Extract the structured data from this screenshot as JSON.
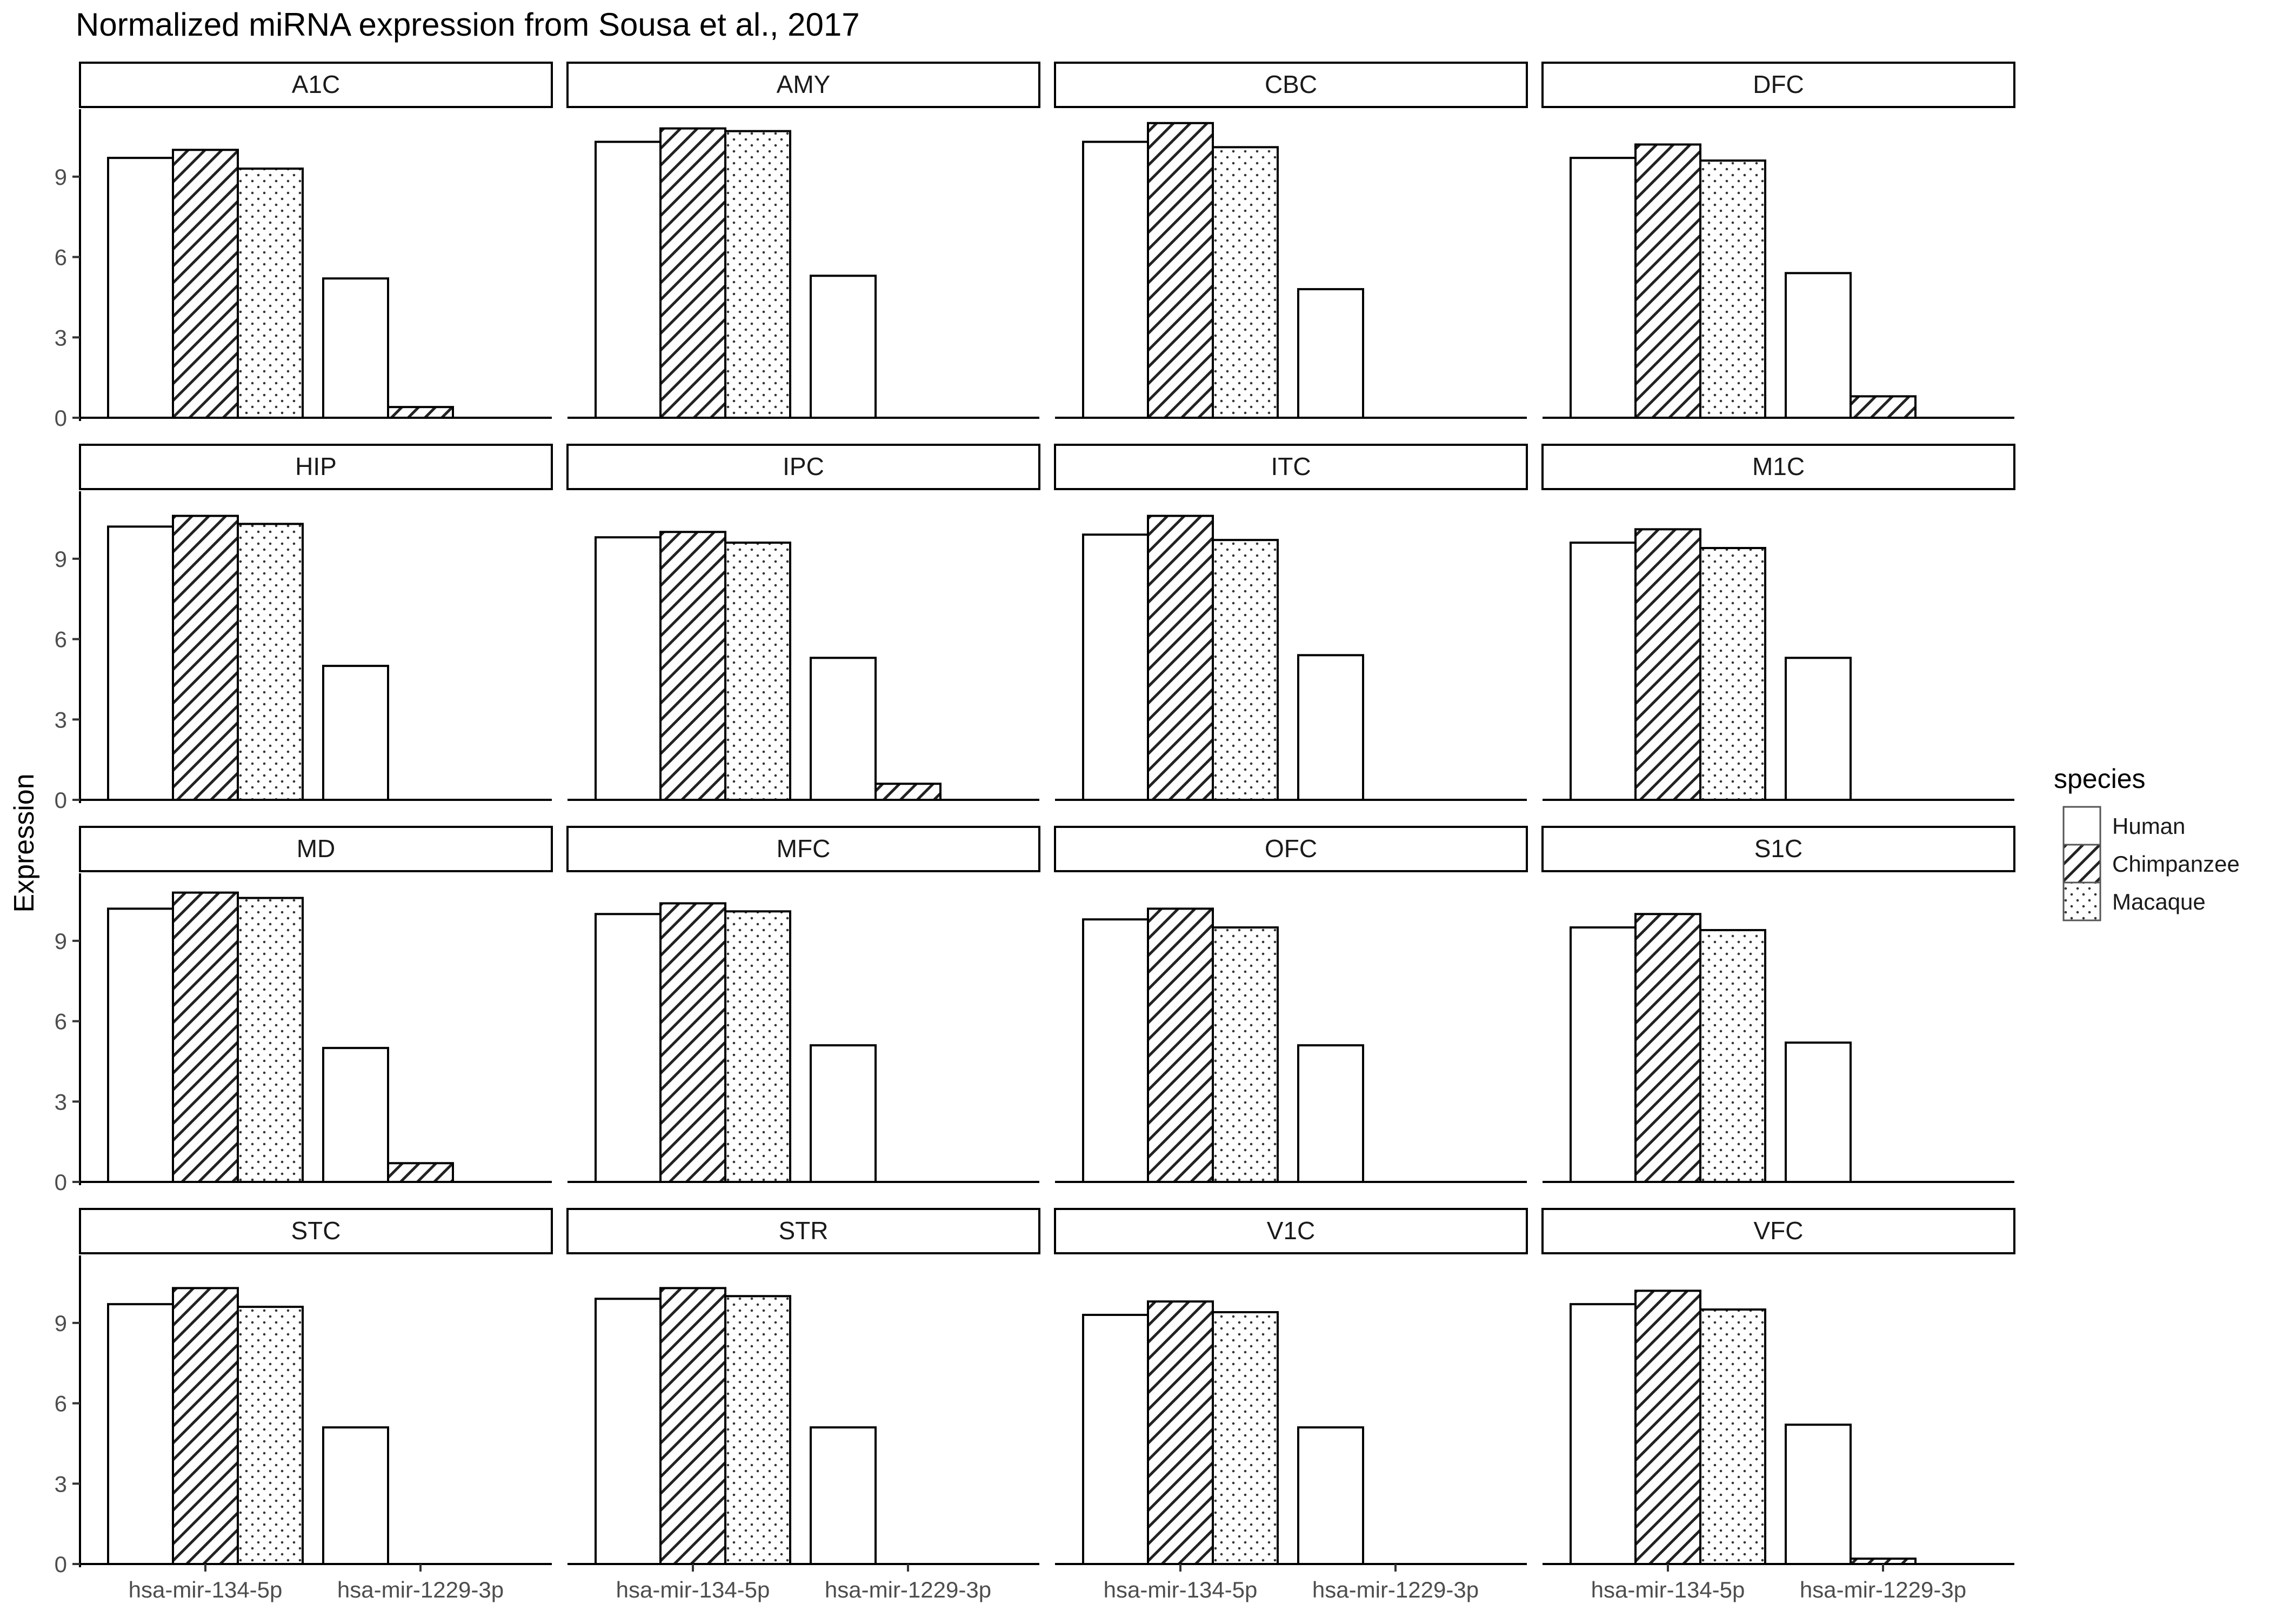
{
  "chart_data": {
    "type": "bar",
    "title": "Normalized miRNA expression from Sousa et al., 2017",
    "ylabel": "Expression",
    "xlabel": "",
    "ylim": [
      0,
      11.6
    ],
    "yticks": [
      0,
      3,
      6,
      9
    ],
    "categories": [
      "hsa-mir-134-5p",
      "hsa-mir-1229-3p"
    ],
    "legend": {
      "title": "species",
      "placement": "right",
      "entries": [
        {
          "name": "Human",
          "fill": "blank"
        },
        {
          "name": "Chimpanzee",
          "fill": "stripe"
        },
        {
          "name": "Macaque",
          "fill": "dots"
        }
      ]
    },
    "species": [
      "Human",
      "Chimpanzee",
      "Macaque"
    ],
    "panels": [
      {
        "region": "A1C",
        "values": {
          "hsa-mir-134-5p": [
            9.7,
            10.0,
            9.3
          ],
          "hsa-mir-1229-3p": [
            5.2,
            0.4,
            0
          ]
        }
      },
      {
        "region": "AMY",
        "values": {
          "hsa-mir-134-5p": [
            10.3,
            10.8,
            10.7
          ],
          "hsa-mir-1229-3p": [
            5.3,
            0,
            0
          ]
        }
      },
      {
        "region": "CBC",
        "values": {
          "hsa-mir-134-5p": [
            10.3,
            11.0,
            10.1
          ],
          "hsa-mir-1229-3p": [
            4.8,
            0,
            0
          ]
        }
      },
      {
        "region": "DFC",
        "values": {
          "hsa-mir-134-5p": [
            9.7,
            10.2,
            9.6
          ],
          "hsa-mir-1229-3p": [
            5.4,
            0.8,
            0
          ]
        }
      },
      {
        "region": "HIP",
        "values": {
          "hsa-mir-134-5p": [
            10.2,
            10.6,
            10.3
          ],
          "hsa-mir-1229-3p": [
            5.0,
            0,
            0
          ]
        }
      },
      {
        "region": "IPC",
        "values": {
          "hsa-mir-134-5p": [
            9.8,
            10.0,
            9.6
          ],
          "hsa-mir-1229-3p": [
            5.3,
            0.6,
            0
          ]
        }
      },
      {
        "region": "ITC",
        "values": {
          "hsa-mir-134-5p": [
            9.9,
            10.6,
            9.7
          ],
          "hsa-mir-1229-3p": [
            5.4,
            0,
            0
          ]
        }
      },
      {
        "region": "M1C",
        "values": {
          "hsa-mir-134-5p": [
            9.6,
            10.1,
            9.4
          ],
          "hsa-mir-1229-3p": [
            5.3,
            0,
            0
          ]
        }
      },
      {
        "region": "MD",
        "values": {
          "hsa-mir-134-5p": [
            10.2,
            10.8,
            10.6
          ],
          "hsa-mir-1229-3p": [
            5.0,
            0.7,
            0
          ]
        }
      },
      {
        "region": "MFC",
        "values": {
          "hsa-mir-134-5p": [
            10.0,
            10.4,
            10.1
          ],
          "hsa-mir-1229-3p": [
            5.1,
            0,
            0
          ]
        }
      },
      {
        "region": "OFC",
        "values": {
          "hsa-mir-134-5p": [
            9.8,
            10.2,
            9.5
          ],
          "hsa-mir-1229-3p": [
            5.1,
            0,
            0
          ]
        }
      },
      {
        "region": "S1C",
        "values": {
          "hsa-mir-134-5p": [
            9.5,
            10.0,
            9.4
          ],
          "hsa-mir-1229-3p": [
            5.2,
            0,
            0
          ]
        }
      },
      {
        "region": "STC",
        "values": {
          "hsa-mir-134-5p": [
            9.7,
            10.3,
            9.6
          ],
          "hsa-mir-1229-3p": [
            5.1,
            0,
            0
          ]
        }
      },
      {
        "region": "STR",
        "values": {
          "hsa-mir-134-5p": [
            9.9,
            10.3,
            10.0
          ],
          "hsa-mir-1229-3p": [
            5.1,
            0,
            0
          ]
        }
      },
      {
        "region": "V1C",
        "values": {
          "hsa-mir-134-5p": [
            9.3,
            9.8,
            9.4
          ],
          "hsa-mir-1229-3p": [
            5.1,
            0,
            0
          ]
        }
      },
      {
        "region": "VFC",
        "values": {
          "hsa-mir-134-5p": [
            9.7,
            10.2,
            9.5
          ],
          "hsa-mir-1229-3p": [
            5.2,
            0.2,
            0
          ]
        }
      }
    ]
  }
}
